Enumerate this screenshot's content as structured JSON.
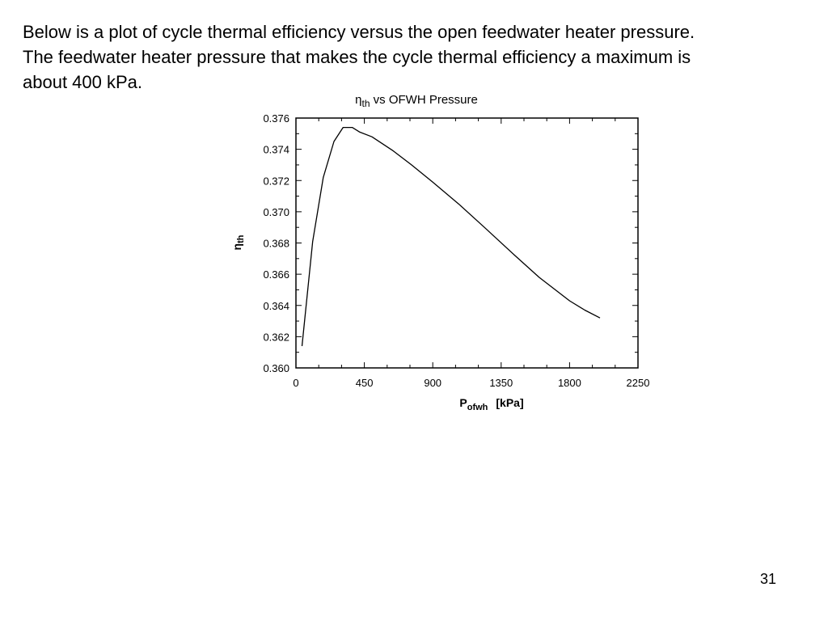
{
  "slide": {
    "lines": [
      "Below is a plot of cycle thermal efficiency versus the open feedwater heater pressure.",
      "The feedwater heater pressure that makes the cycle thermal efficiency a maximum is",
      "about 400 kPa."
    ],
    "page_number": "31"
  },
  "chart_data": {
    "type": "line",
    "title": {
      "symbol": "η",
      "subscript": "th",
      "rest": " vs OFWH Pressure"
    },
    "xlabel": {
      "main": "P",
      "subscript": "ofwh",
      "unit": "[kPa]"
    },
    "ylabel": {
      "main": "η",
      "subscript": "th"
    },
    "xlim": [
      0,
      2250
    ],
    "ylim": [
      0.36,
      0.376
    ],
    "x_ticks": [
      "0",
      "450",
      "900",
      "1350",
      "1800",
      "2250"
    ],
    "y_ticks": [
      "0.360",
      "0.362",
      "0.364",
      "0.366",
      "0.368",
      "0.370",
      "0.372",
      "0.374",
      "0.376"
    ],
    "grid": false,
    "series": [
      {
        "x": [
          40,
          110,
          180,
          250,
          310,
          370,
          420,
          500,
          640,
          760,
          900,
          1070,
          1240,
          1440,
          1600,
          1800,
          1900,
          2000
        ],
        "y": [
          0.3614,
          0.3681,
          0.3722,
          0.3745,
          0.3754,
          0.3754,
          0.3751,
          0.3748,
          0.3739,
          0.373,
          0.3719,
          0.3705,
          0.369,
          0.3672,
          0.3658,
          0.3643,
          0.3637,
          0.3632
        ]
      }
    ]
  }
}
